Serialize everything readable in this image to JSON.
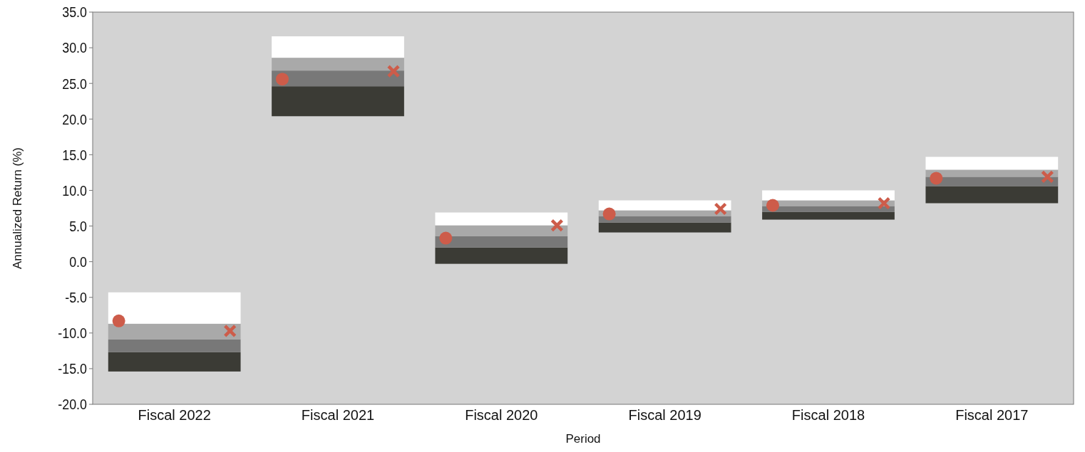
{
  "chart_data": {
    "type": "bar",
    "xlabel": "Period",
    "ylabel": "Annualized Return (%)",
    "categories": [
      "Fiscal 2022",
      "Fiscal 2021",
      "Fiscal 2020",
      "Fiscal 2019",
      "Fiscal 2018",
      "Fiscal 2017"
    ],
    "series": [
      {
        "color": "#3b3b35",
        "base": [
          -15.4,
          20.4,
          -0.3,
          4.1,
          5.9,
          8.2
        ],
        "values": [
          2.7,
          4.2,
          2.3,
          1.4,
          1.1,
          2.4
        ]
      },
      {
        "color": "#787878",
        "base": [
          -12.7,
          24.6,
          2.0,
          5.5,
          7.0,
          10.6
        ],
        "values": [
          1.8,
          2.2,
          1.6,
          0.9,
          0.8,
          1.3
        ]
      },
      {
        "color": "#a9a9a9",
        "base": [
          -10.9,
          26.8,
          3.6,
          6.4,
          7.8,
          11.9
        ],
        "values": [
          2.2,
          1.8,
          1.5,
          0.8,
          0.8,
          1.0
        ]
      },
      {
        "color": "#ffffff",
        "base": [
          -8.7,
          28.6,
          5.1,
          7.2,
          8.6,
          12.9
        ],
        "values": [
          4.4,
          3.0,
          1.8,
          1.4,
          1.4,
          1.8
        ]
      },
      {
        "type": "scatter",
        "marker": "circle",
        "color": "#cd5c4a",
        "values": [
          -8.3,
          25.6,
          3.3,
          6.7,
          7.9,
          11.7
        ]
      },
      {
        "type": "scatter",
        "marker": "cross",
        "color": "#cd5c4a",
        "values": [
          -9.7,
          26.7,
          5.1,
          7.4,
          8.2,
          11.9
        ]
      }
    ],
    "ylim": [
      -20,
      35
    ],
    "yticks": [
      {
        "value": -20,
        "label": "-20.0"
      },
      {
        "value": -15,
        "label": "-15.0"
      },
      {
        "value": -10,
        "label": "-10.0"
      },
      {
        "value": -5,
        "label": "-5.0"
      },
      {
        "value": 0,
        "label": "0.0"
      },
      {
        "value": 5,
        "label": "5.0"
      },
      {
        "value": 10,
        "label": "10.0"
      },
      {
        "value": 15,
        "label": "15.0"
      },
      {
        "value": 20,
        "label": "20.0"
      },
      {
        "value": 25,
        "label": "25.0"
      },
      {
        "value": 30,
        "label": "30.0"
      },
      {
        "value": 35,
        "label": "35.0"
      }
    ],
    "grid": false
  }
}
